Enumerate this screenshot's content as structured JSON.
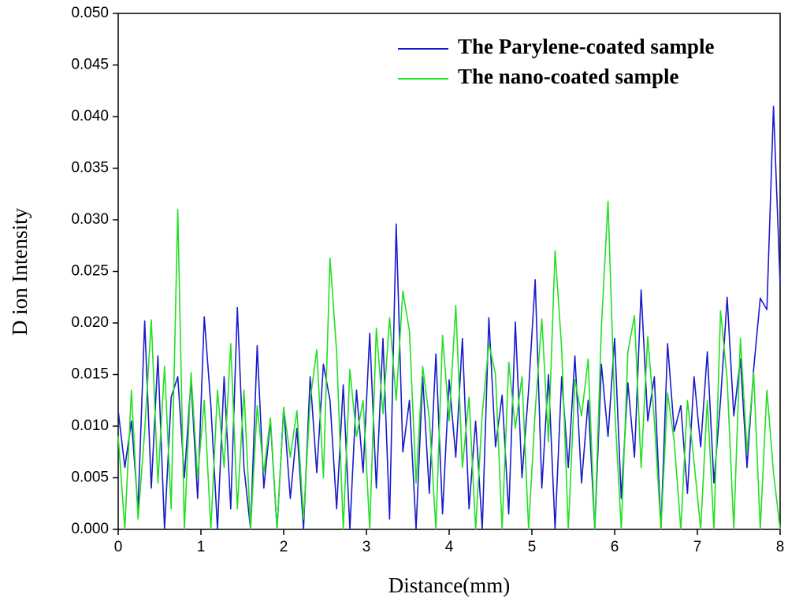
{
  "chart_data": {
    "type": "line",
    "xlabel": "Distance(mm)",
    "ylabel": "D ion Intensity",
    "x": [
      0,
      0.08,
      0.16,
      0.24,
      0.32,
      0.4,
      0.48,
      0.56,
      0.64,
      0.72,
      0.8,
      0.88,
      0.96,
      1.04,
      1.12,
      1.2,
      1.28,
      1.36,
      1.44,
      1.52,
      1.6,
      1.68,
      1.76,
      1.84,
      1.92,
      2,
      2.08,
      2.16,
      2.24,
      2.32,
      2.4,
      2.48,
      2.56,
      2.64,
      2.72,
      2.8,
      2.88,
      2.96,
      3.04,
      3.12,
      3.2,
      3.28,
      3.36,
      3.44,
      3.52,
      3.6,
      3.68,
      3.76,
      3.84,
      3.92,
      4,
      4.08,
      4.16,
      4.24,
      4.32,
      4.4,
      4.48,
      4.56,
      4.64,
      4.72,
      4.8,
      4.88,
      4.96,
      5.04,
      5.12,
      5.2,
      5.28,
      5.36,
      5.44,
      5.52,
      5.6,
      5.68,
      5.76,
      5.84,
      5.92,
      6,
      6.08,
      6.16,
      6.24,
      6.32,
      6.4,
      6.48,
      6.56,
      6.64,
      6.72,
      6.8,
      6.88,
      6.96,
      7.04,
      7.12,
      7.2,
      7.28,
      7.36,
      7.44,
      7.52,
      7.6,
      7.68,
      7.76,
      7.84,
      7.92,
      8
    ],
    "series": [
      {
        "name": "The Parylene-coated sample",
        "color": "#1a1acc",
        "values": [
          0.0115,
          0.006,
          0.0105,
          0.002,
          0.0202,
          0.004,
          0.0168,
          0,
          0.0128,
          0.0148,
          0.005,
          0.0145,
          0.003,
          0.0206,
          0.012,
          0,
          0.0148,
          0.002,
          0.0215,
          0.006,
          0,
          0.0178,
          0.004,
          0.0105,
          0,
          0.0118,
          0.003,
          0.0098,
          0,
          0.0148,
          0.0055,
          0.016,
          0.0125,
          0.002,
          0.014,
          0,
          0.0135,
          0.0055,
          0.019,
          0.004,
          0.0185,
          0.001,
          0.0296,
          0.0075,
          0.0125,
          0,
          0.0148,
          0.0035,
          0.017,
          0.0015,
          0.0145,
          0.007,
          0.0185,
          0.002,
          0.0105,
          0,
          0.0205,
          0.008,
          0.013,
          0.0015,
          0.0201,
          0.005,
          0.0135,
          0.0242,
          0.004,
          0.015,
          0,
          0.0148,
          0.006,
          0.0168,
          0.0045,
          0.0125,
          0,
          0.016,
          0.009,
          0.0185,
          0.003,
          0.0142,
          0.007,
          0.0232,
          0.0105,
          0.0148,
          0,
          0.018,
          0.0095,
          0.012,
          0.0035,
          0.0148,
          0.008,
          0.0172,
          0.0045,
          0.0125,
          0.0225,
          0.011,
          0.0165,
          0.006,
          0.0155,
          0.0224,
          0.0213,
          0.041,
          0.0238
        ]
      },
      {
        "name": "The nano-coated sample",
        "color": "#22e022",
        "values": [
          0.009,
          0,
          0.0135,
          0.001,
          0.0095,
          0.0203,
          0.0045,
          0.0158,
          0.002,
          0.031,
          0,
          0.0152,
          0.005,
          0.0125,
          0,
          0.0135,
          0.006,
          0.018,
          0.002,
          0.0135,
          0,
          0.012,
          0.0055,
          0.0108,
          0,
          0.0118,
          0.007,
          0.0115,
          0.001,
          0.0125,
          0.0174,
          0.005,
          0.0263,
          0.0172,
          0,
          0.0155,
          0.009,
          0.0125,
          0,
          0.0195,
          0.0112,
          0.0205,
          0.0125,
          0.0231,
          0.0192,
          0.0045,
          0.0158,
          0.0108,
          0,
          0.0188,
          0.0105,
          0.0217,
          0.006,
          0.0128,
          0,
          0.0112,
          0.018,
          0.015,
          0,
          0.0162,
          0.0098,
          0.0148,
          0,
          0.0115,
          0.0204,
          0.0085,
          0.027,
          0.0175,
          0,
          0.0145,
          0.011,
          0.0165,
          0,
          0.0196,
          0.0318,
          0.0118,
          0,
          0.0172,
          0.0207,
          0.006,
          0.0187,
          0.0105,
          0,
          0.0132,
          0.0085,
          0,
          0.0125,
          0.0065,
          0,
          0.0125,
          0,
          0.0212,
          0.0145,
          0,
          0.0185,
          0.0075,
          0.0152,
          0,
          0.0135,
          0.0055,
          0
        ]
      }
    ],
    "xlim": [
      0,
      8
    ],
    "xticks": [
      0,
      1,
      2,
      3,
      4,
      5,
      6,
      7,
      8
    ],
    "ylim": [
      0,
      0.05
    ],
    "yticks": [
      {
        "value": 0,
        "label": "0.000"
      },
      {
        "value": 0.005,
        "label": "0.005"
      },
      {
        "value": 0.01,
        "label": "0.010"
      },
      {
        "value": 0.015,
        "label": "0.015"
      },
      {
        "value": 0.02,
        "label": "0.020"
      },
      {
        "value": 0.025,
        "label": "0.025"
      },
      {
        "value": 0.03,
        "label": "0.030"
      },
      {
        "value": 0.035,
        "label": "0.035"
      },
      {
        "value": 0.04,
        "label": "0.040"
      },
      {
        "value": 0.045,
        "label": "0.045"
      },
      {
        "value": 0.05,
        "label": "0.050"
      }
    ],
    "legend": "upper right",
    "grid": false
  }
}
